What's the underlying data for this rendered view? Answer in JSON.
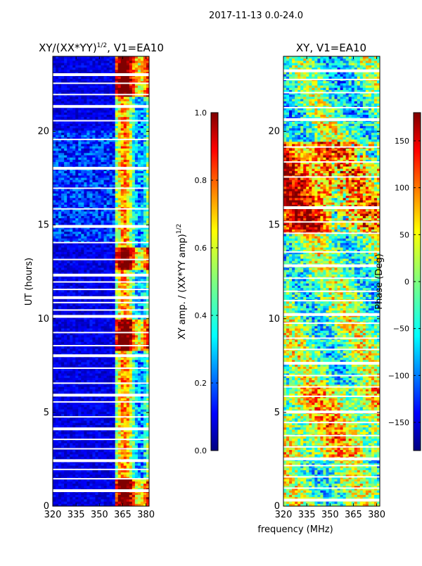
{
  "suptitle": "2017-11-13 0.0-24.0",
  "chart_data": [
    {
      "type": "heatmap",
      "title_main": "XY/(XX*YY)",
      "title_sup": "1/2",
      "title_tail": ", V1=EA10",
      "xlabel": "",
      "ylabel": "UT (hours)",
      "xlim": [
        320,
        382
      ],
      "ylim": [
        0,
        24
      ],
      "xticks": [
        320,
        335,
        350,
        365,
        380
      ],
      "yticks": [
        0,
        5,
        10,
        15,
        20
      ],
      "colorbar": {
        "label_main": "XY amp. / (XX*YY amp)",
        "label_sup": "1/2",
        "range": [
          0.0,
          1.0
        ],
        "ticks": [
          "0.0",
          "0.2",
          "0.4",
          "0.6",
          "0.8",
          "1.0"
        ]
      }
    },
    {
      "type": "heatmap",
      "title_main": "XY, V1=EA10",
      "xlabel": "frequency (MHz)",
      "ylabel": "",
      "xlim": [
        320,
        382
      ],
      "ylim": [
        0,
        24
      ],
      "xticks": [
        320,
        335,
        350,
        365,
        380
      ],
      "yticks": [
        0,
        5,
        10,
        15,
        20
      ],
      "colorbar": {
        "label_main": "Phase (Deg)",
        "range": [
          -180,
          180
        ],
        "ticks": [
          "−150",
          "−100",
          "−50",
          "0",
          "50",
          "100",
          "150"
        ]
      }
    }
  ],
  "colors": {
    "jet": [
      "#00007f",
      "#0000ff",
      "#007fff",
      "#00ffff",
      "#7fff7f",
      "#ffff00",
      "#ff7f00",
      "#ff0000",
      "#7f0000"
    ]
  }
}
